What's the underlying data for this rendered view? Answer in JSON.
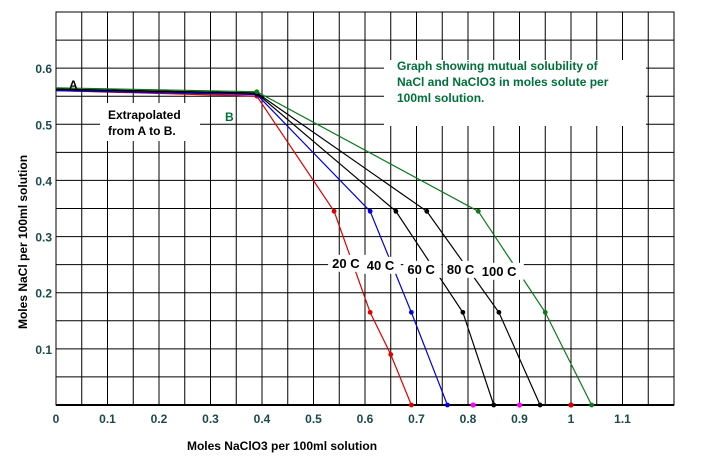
{
  "chart_data": {
    "type": "line",
    "title": "",
    "xlabel": "Moles NaClO3 per 100ml solution",
    "ylabel": "Moles NaCl per 100ml solution",
    "xlim": [
      0,
      1.2
    ],
    "ylim": [
      0,
      0.7
    ],
    "x_ticks": [
      "0",
      "0.1",
      "0.2",
      "0.3",
      "0.4",
      "0.5",
      "0.6",
      "0.7",
      "0.8",
      "0.9",
      "1",
      "1.1"
    ],
    "y_ticks": [
      "0.1",
      "0.2",
      "0.3",
      "0.4",
      "0.5",
      "0.6"
    ],
    "grid": true,
    "callout_lines": [
      "Graph showing mutual solubility of",
      "NaCl and NaClO3 in moles solute per",
      "100ml solution."
    ],
    "extrapolation_lines": [
      "Extrapolated",
      "from A to B."
    ],
    "point_labels": {
      "A": "A",
      "B": "B"
    },
    "series": [
      {
        "name": "20 C",
        "color": "#e00000",
        "x": [
          0,
          0.39,
          0.54,
          0.61,
          0.65,
          0.69
        ],
        "y": [
          0.56,
          0.55,
          0.345,
          0.165,
          0.09,
          0.0
        ]
      },
      {
        "name": "40 C",
        "color": "#0000dd",
        "x": [
          0,
          0.39,
          0.61,
          0.69,
          0.76
        ],
        "y": [
          0.56,
          0.553,
          0.345,
          0.165,
          0.0
        ]
      },
      {
        "name": "60 C",
        "color": "#000000",
        "x": [
          0,
          0.39,
          0.66,
          0.79,
          0.85
        ],
        "y": [
          0.562,
          0.555,
          0.345,
          0.165,
          0.0
        ]
      },
      {
        "name": "80 C",
        "color": "#000000",
        "x": [
          0,
          0.39,
          0.72,
          0.86,
          0.94
        ],
        "y": [
          0.563,
          0.556,
          0.345,
          0.165,
          0.0
        ]
      },
      {
        "name": "100 C",
        "color": "#0a7a1a",
        "x": [
          0,
          0.39,
          0.82,
          0.95,
          1.04
        ],
        "y": [
          0.565,
          0.558,
          0.345,
          0.165,
          0.0
        ]
      }
    ],
    "extra_points": [
      {
        "color": "#ff00ff",
        "x": 0.81,
        "y": 0.0
      },
      {
        "color": "#ff00ff",
        "x": 0.9,
        "y": 0.0
      },
      {
        "color": "#e00000",
        "x": 1.0,
        "y": 0.0
      }
    ]
  }
}
